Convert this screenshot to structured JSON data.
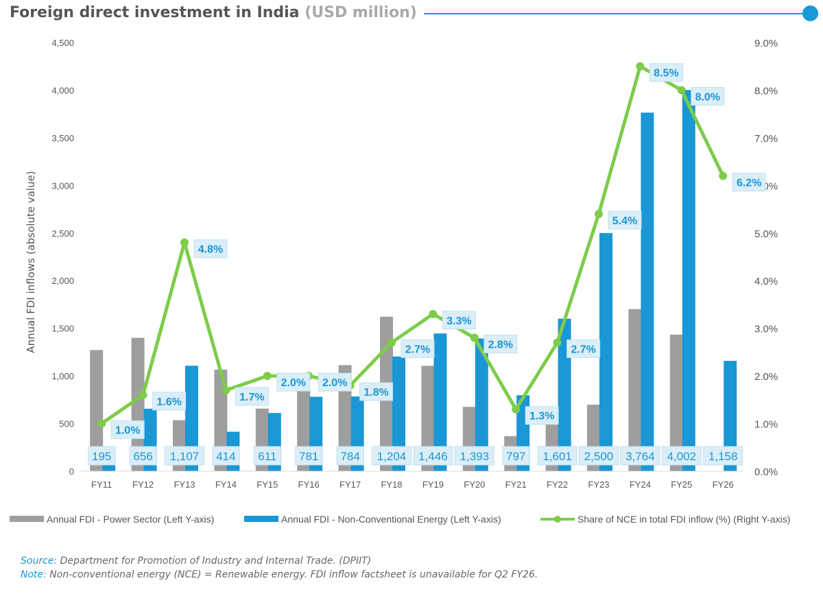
{
  "header": {
    "title": "Foreign direct investment in India",
    "unit": "(USD million)"
  },
  "chart_data": {
    "type": "bar",
    "title": "Foreign direct investment in India (USD million)",
    "categories": [
      "FY11",
      "FY12",
      "FY13",
      "FY14",
      "FY15",
      "FY16",
      "FY17",
      "FY18",
      "FY19",
      "FY20",
      "FY21",
      "FY22",
      "FY23",
      "FY24",
      "FY25",
      "FY26"
    ],
    "series": [
      {
        "name": "Annual FDI - Power Sector (Left Y-axis)",
        "kind": "bar",
        "axis": "left",
        "color": "#9e9e9e",
        "values": [
          1272,
          1400,
          535,
          1066,
          657,
          870,
          1113,
          1621,
          1106,
          675,
          368,
          521,
          698,
          1701,
          1433,
          0
        ]
      },
      {
        "name": "Annual FDI - Non-Conventional Energy (Left Y-axis)",
        "kind": "bar",
        "axis": "left",
        "color": "#1a97d5",
        "values": [
          195,
          656,
          1107,
          414,
          611,
          781,
          784,
          1204,
          1446,
          1393,
          797,
          1601,
          2500,
          3764,
          4002,
          1158
        ],
        "labels": [
          "195",
          "656",
          "1,107",
          "414",
          "611",
          "781",
          "784",
          "1,204",
          "1,446",
          "1,393",
          "797",
          "1,601",
          "2,500",
          "3,764",
          "4,002",
          "1,158"
        ]
      },
      {
        "name": "Share of NCE in total FDI inflow (%) (Right Y-axis)",
        "kind": "line",
        "axis": "right",
        "color": "#7dcc4a",
        "values": [
          1.0,
          1.6,
          4.8,
          1.7,
          2.0,
          2.0,
          1.8,
          2.7,
          3.3,
          2.8,
          1.3,
          2.7,
          5.4,
          8.5,
          8.0,
          6.2
        ],
        "labels": [
          "1.0%",
          "1.6%",
          "4.8%",
          "1.7%",
          "2.0%",
          "2.0%",
          "1.8%",
          "2.7%",
          "3.3%",
          "2.8%",
          "1.3%",
          "2.7%",
          "5.4%",
          "8.5%",
          "8.0%",
          "6.2%"
        ]
      }
    ],
    "ylabel": "Annual FDI inflows (absolute value)",
    "ylim": [
      0,
      4500
    ],
    "yticks": [
      0,
      500,
      1000,
      1500,
      2000,
      2500,
      3000,
      3500,
      4000,
      4500
    ],
    "ytick_labels": [
      "0",
      "500",
      "1,000",
      "1,500",
      "2,000",
      "2,500",
      "3,000",
      "3,500",
      "4,000",
      "4,500"
    ],
    "y2lim": [
      0,
      9
    ],
    "y2ticks": [
      0,
      1,
      2,
      3,
      4,
      5,
      6,
      7,
      8,
      9
    ],
    "y2tick_labels": [
      "0.0%",
      "1.0%",
      "2.0%",
      "3.0%",
      "4.0%",
      "5.0%",
      "6.0%",
      "7.0%",
      "8.0%",
      "9.0%"
    ],
    "legend": "bottom",
    "grid": false
  },
  "footer": {
    "source_key": "Source:",
    "source_text": " Department for Promotion of Industry and Internal Trade. (DPIIT)",
    "note_key": "Note:",
    "note_text": " Non-conventional energy (NCE) = Renewable energy. FDI inflow factsheet is unavailable for Q2 FY26."
  }
}
